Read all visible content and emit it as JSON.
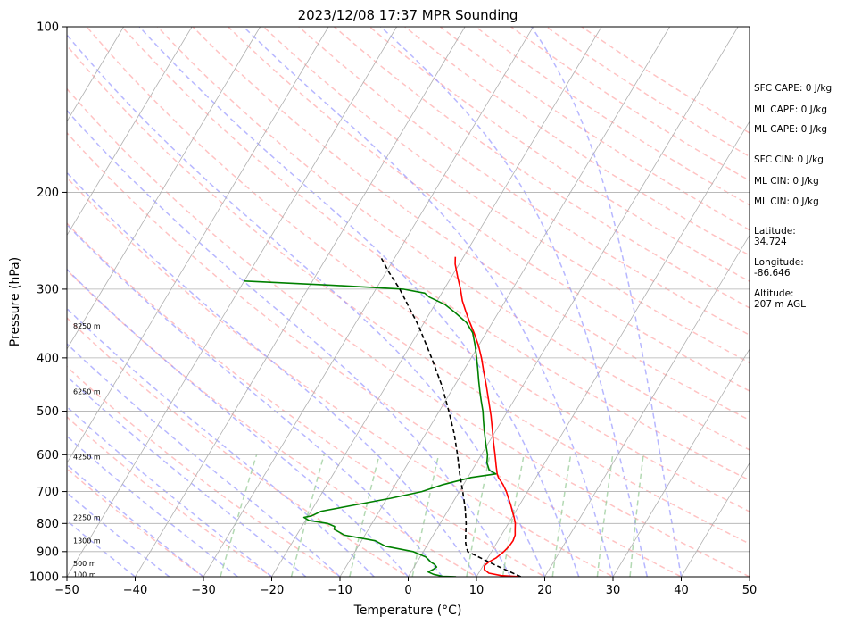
{
  "chart_data": {
    "type": "line",
    "title": "2023/12/08 17:37 MPR Sounding",
    "xlabel": "Temperature (°C)",
    "ylabel": "Pressure (hPa)",
    "xlim": [
      -50,
      50
    ],
    "ylim": [
      1000,
      100
    ],
    "y_scale": "log",
    "skew": true,
    "grid": true,
    "x_ticks": [
      -50,
      -40,
      -30,
      -20,
      -10,
      0,
      10,
      20,
      30,
      40,
      50
    ],
    "y_ticks": [
      100,
      200,
      300,
      400,
      500,
      600,
      700,
      800,
      900,
      1000
    ],
    "background_lines": {
      "isotherms": {
        "values": [
          -100,
          -90,
          -80,
          -70,
          -60,
          -50,
          -40,
          -30,
          -20,
          -10,
          0,
          10,
          20,
          30,
          40,
          50
        ],
        "color": "#b0b0b0"
      },
      "dry_adiabats": {
        "color": "#ffaaaa"
      },
      "moist_adiabats": {
        "color": "#9999ff"
      },
      "mixing_ratio": {
        "color": "#99cc99"
      }
    },
    "series": [
      {
        "color": "#ff0000",
        "points": [
          [
            1000,
            16.5
          ],
          [
            995,
            13.5
          ],
          [
            985,
            11.5
          ],
          [
            970,
            10.5
          ],
          [
            955,
            10.2
          ],
          [
            940,
            10.5
          ],
          [
            925,
            11.2
          ],
          [
            900,
            11.8
          ],
          [
            880,
            12.1
          ],
          [
            860,
            12.2
          ],
          [
            840,
            12.0
          ],
          [
            820,
            11.5
          ],
          [
            800,
            11.0
          ],
          [
            780,
            10.3
          ],
          [
            760,
            9.5
          ],
          [
            740,
            8.7
          ],
          [
            720,
            7.8
          ],
          [
            700,
            6.9
          ],
          [
            680,
            5.8
          ],
          [
            660,
            4.5
          ],
          [
            650,
            4.0
          ],
          [
            630,
            3.2
          ],
          [
            600,
            2.0
          ],
          [
            570,
            0.7
          ],
          [
            540,
            -0.6
          ],
          [
            510,
            -2.0
          ],
          [
            480,
            -3.6
          ],
          [
            450,
            -5.3
          ],
          [
            420,
            -7.2
          ],
          [
            400,
            -8.5
          ],
          [
            380,
            -10.0
          ],
          [
            360,
            -11.8
          ],
          [
            345,
            -13.3
          ],
          [
            330,
            -14.8
          ],
          [
            315,
            -16.3
          ],
          [
            300,
            -17.6
          ],
          [
            285,
            -19.1
          ],
          [
            270,
            -20.6
          ],
          [
            262,
            -21.2
          ]
        ]
      },
      {
        "color": "#008000",
        "points": [
          [
            1000,
            7.0
          ],
          [
            998,
            5.0
          ],
          [
            990,
            3.5
          ],
          [
            980,
            2.5
          ],
          [
            970,
            3.0
          ],
          [
            960,
            3.3
          ],
          [
            950,
            2.8
          ],
          [
            940,
            2.0
          ],
          [
            920,
            0.8
          ],
          [
            900,
            -1.5
          ],
          [
            880,
            -6.0
          ],
          [
            860,
            -8.0
          ],
          [
            840,
            -13.0
          ],
          [
            820,
            -15.0
          ],
          [
            810,
            -15.2
          ],
          [
            800,
            -16.5
          ],
          [
            795,
            -18.0
          ],
          [
            790,
            -19.5
          ],
          [
            780,
            -20.5
          ],
          [
            775,
            -19.5
          ],
          [
            760,
            -18.5
          ],
          [
            740,
            -14.0
          ],
          [
            720,
            -9.5
          ],
          [
            700,
            -5.5
          ],
          [
            680,
            -3.0
          ],
          [
            660,
            0.5
          ],
          [
            650,
            3.8
          ],
          [
            640,
            2.5
          ],
          [
            620,
            1.5
          ],
          [
            600,
            0.9
          ],
          [
            580,
            0.0
          ],
          [
            560,
            -0.9
          ],
          [
            540,
            -1.8
          ],
          [
            520,
            -2.7
          ],
          [
            500,
            -3.6
          ],
          [
            480,
            -4.7
          ],
          [
            460,
            -5.8
          ],
          [
            440,
            -6.9
          ],
          [
            420,
            -8.0
          ],
          [
            400,
            -9.2
          ],
          [
            380,
            -10.5
          ],
          [
            360,
            -12.0
          ],
          [
            345,
            -13.8
          ],
          [
            330,
            -16.5
          ],
          [
            320,
            -18.5
          ],
          [
            310,
            -21.5
          ],
          [
            305,
            -22.5
          ],
          [
            300,
            -26.0
          ],
          [
            295,
            -37.0
          ],
          [
            290,
            -50.0
          ]
        ]
      },
      {
        "color": "#000000",
        "dashed": true,
        "points": [
          [
            1000,
            16.5
          ],
          [
            950,
            11.5
          ],
          [
            900,
            6.5
          ],
          [
            870,
            5.5
          ],
          [
            850,
            5.0
          ],
          [
            800,
            3.8
          ],
          [
            750,
            2.3
          ],
          [
            700,
            0.5
          ],
          [
            650,
            -1.5
          ],
          [
            600,
            -3.5
          ],
          [
            550,
            -5.8
          ],
          [
            500,
            -8.6
          ],
          [
            450,
            -11.8
          ],
          [
            400,
            -15.8
          ],
          [
            350,
            -20.5
          ],
          [
            300,
            -26.5
          ],
          [
            280,
            -29.5
          ],
          [
            263,
            -32.0
          ]
        ]
      }
    ],
    "height_labels": [
      "8250 m",
      "6250 m",
      "4250 m",
      "2250 m",
      "1300 m",
      "500 m",
      "100 m"
    ],
    "height_label_pressures": [
      350,
      460,
      605,
      780,
      860,
      945,
      990
    ]
  },
  "indices": {
    "sfc_cape": "SFC CAPE: 0 J/kg",
    "ml_cape_1": "ML CAPE: 0 J/kg",
    "ml_cape_2": "ML CAPE: 0 J/kg",
    "sfc_cin": "SFC CIN: 0 J/kg",
    "ml_cin_1": "ML CIN: 0 J/kg",
    "ml_cin_2": "ML CIN: 0 J/kg",
    "latitude_label": "Latitude:",
    "latitude_value": "34.724",
    "longitude_label": "Longitude:",
    "longitude_value": "-86.646",
    "altitude_label": "Altitude:",
    "altitude_value": "207 m AGL"
  }
}
